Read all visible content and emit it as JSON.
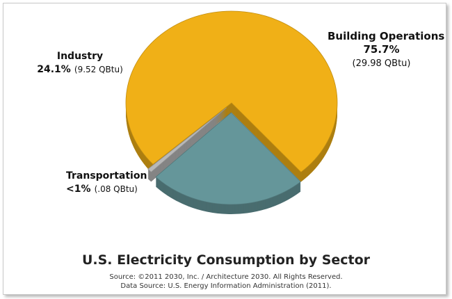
{
  "chart_data": {
    "type": "pie",
    "title": "U.S. Electricity Consumption by Sector",
    "unit": "QBtu",
    "categories": [
      "Building Operations",
      "Industry",
      "Transportation"
    ],
    "values": [
      29.98,
      9.52,
      0.08
    ],
    "percent_labels": [
      "75.7%",
      "24.1%",
      "<1%"
    ],
    "value_labels": [
      "(29.98 QBtu)",
      "(9.52 QBtu)",
      "(.08 QBtu)"
    ],
    "colors": [
      "#F0B017",
      "#65969A",
      "#B8B8B8"
    ],
    "exploded": [
      "Industry",
      "Transportation"
    ],
    "style": "3d"
  },
  "footer": {
    "source_line": "Source: ©2011 2030, Inc. / Architecture 2030. All Rights Reserved.",
    "data_source_line": "Data Source: U.S. Energy Information Administration (2011)."
  }
}
